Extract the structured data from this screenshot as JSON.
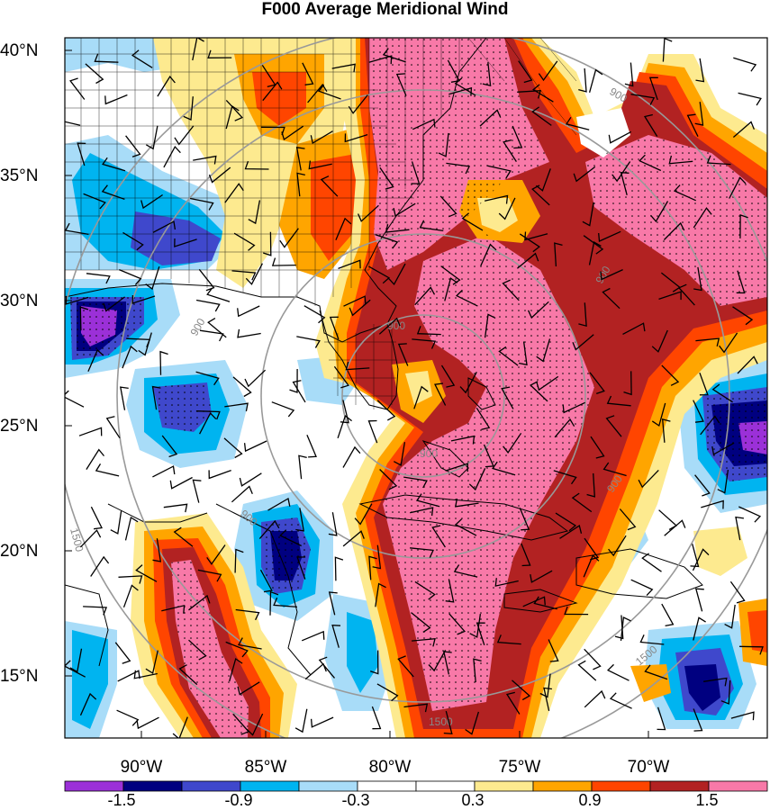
{
  "title": "F000 Average Meridional Wind",
  "axes": {
    "lat_labels": [
      "40°N",
      "35°N",
      "30°N",
      "25°N",
      "20°N",
      "15°N"
    ],
    "lon_labels": [
      "90°W",
      "85°W",
      "80°W",
      "75°W",
      "70°W"
    ]
  },
  "colorbar": {
    "tick_labels": [
      "-1.5",
      "-0.9",
      "-0.3",
      "0.3",
      "0.9",
      "1.5"
    ],
    "colors": [
      "#9b30d8",
      "#000080",
      "#3f48cc",
      "#00b4f0",
      "#a8dcf8",
      "#ffffff",
      "#ffffff",
      "#fdea8f",
      "#ffa500",
      "#ff4500",
      "#b22222",
      "#f879a8"
    ]
  },
  "range_rings": {
    "labels": [
      "900",
      "1500"
    ],
    "color": "#888888"
  },
  "map_colors": {
    "strong_positive": "#f879a8",
    "positive_dark": "#b22222",
    "positive_red": "#ff4500",
    "positive_orange": "#ffa500",
    "positive_yellow": "#fdea8f",
    "negative_light": "#a8dcf8",
    "negative_cyan": "#00b4f0",
    "negative_blue": "#3f48cc",
    "negative_navy": "#000080",
    "negative_purple": "#9b30d8"
  }
}
